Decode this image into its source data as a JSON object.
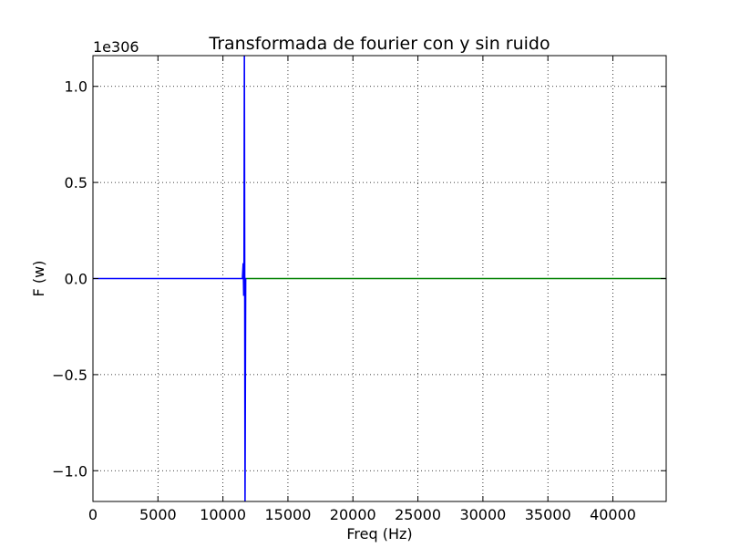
{
  "chart_data": {
    "type": "line",
    "title": "Transformada de fourier con y sin ruido",
    "xlabel": "Freq (Hz)",
    "ylabel": "F (w)",
    "y_offset_label": "1e306",
    "xlim": [
      0,
      44100
    ],
    "ylim": [
      -1.16,
      1.16
    ],
    "x_ticks": [
      0,
      5000,
      10000,
      15000,
      20000,
      25000,
      30000,
      35000,
      40000
    ],
    "x_tick_labels": [
      "0",
      "5000",
      "10000",
      "15000",
      "20000",
      "25000",
      "30000",
      "35000",
      "40000"
    ],
    "y_ticks": [
      -1.0,
      -0.5,
      0.0,
      0.5,
      1.0
    ],
    "y_tick_labels": [
      "−1.0",
      "−0.5",
      "0.0",
      "0.5",
      "1.0"
    ],
    "grid": true,
    "series": [
      {
        "color": "#0000ff",
        "x": [
          0,
          11500,
          11560,
          11600,
          11620,
          11650,
          11700,
          11750,
          11800
        ],
        "y": [
          0,
          0,
          0.08,
          -0.09,
          0.0,
          1.16,
          -1.16,
          0.0,
          0
        ]
      },
      {
        "color": "#008000",
        "x": [
          11800,
          44100
        ],
        "y": [
          0,
          0
        ]
      }
    ]
  }
}
